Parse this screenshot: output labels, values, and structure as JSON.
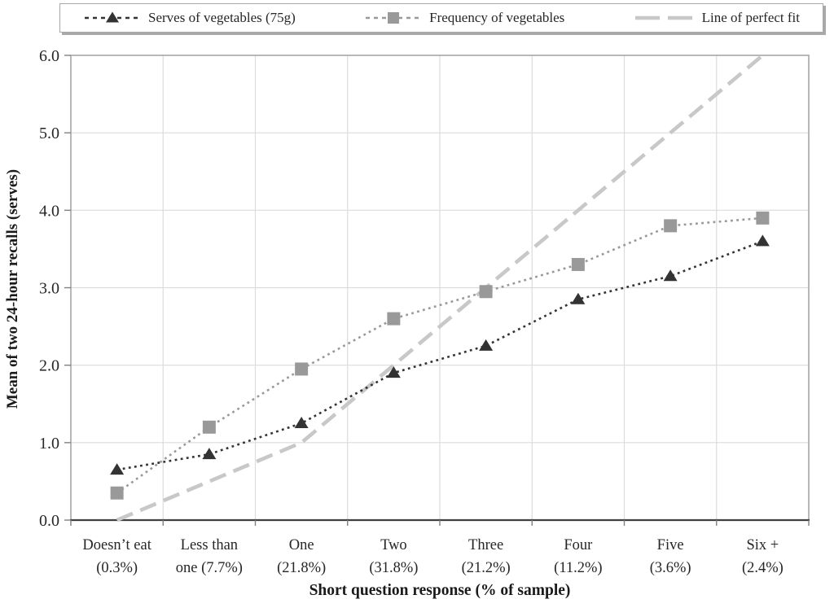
{
  "legend": {
    "items": [
      {
        "label": "Serves of vegetables (75g)"
      },
      {
        "label": "Frequency of vegetables"
      },
      {
        "label": "Line of perfect fit"
      }
    ]
  },
  "chart_data": {
    "type": "line",
    "title": "",
    "xlabel": "Short question response (% of sample)",
    "ylabel": "Mean of two 24-hour recalls (serves)",
    "ylim": [
      0,
      6
    ],
    "yticks": [
      "0.0",
      "1.0",
      "2.0",
      "3.0",
      "4.0",
      "5.0",
      "6.0"
    ],
    "grid": true,
    "legend_position": "top",
    "categories": [
      "Doesn’t eat (0.3%)",
      "Less than one (7.7%)",
      "One (21.8%)",
      "Two (31.8%)",
      "Three (21.2%)",
      "Four (11.2%)",
      "Five (3.6%)",
      "Six + (2.4%)"
    ],
    "category_lines": [
      [
        "Doesn’t eat",
        "(0.3%)"
      ],
      [
        "Less than",
        "one (7.7%)"
      ],
      [
        "One",
        "(21.8%)"
      ],
      [
        "Two",
        "(31.8%)"
      ],
      [
        "Three",
        "(21.2%)"
      ],
      [
        "Four",
        "(11.2%)"
      ],
      [
        "Five",
        "(3.6%)"
      ],
      [
        "Six +",
        "(2.4%)"
      ]
    ],
    "series": [
      {
        "name": "Serves of vegetables (75g)",
        "marker": "triangle",
        "line": "dotted",
        "color": "#333333",
        "values": [
          0.65,
          0.85,
          1.25,
          1.9,
          2.25,
          2.85,
          3.15,
          3.6
        ]
      },
      {
        "name": "Frequency of vegetables",
        "marker": "square",
        "line": "dotted",
        "color": "#999999",
        "values": [
          0.35,
          1.2,
          1.95,
          2.6,
          2.95,
          3.3,
          3.8,
          3.9
        ]
      },
      {
        "name": "Line of perfect fit",
        "marker": "none",
        "line": "long-dash",
        "color": "#c8c8c8",
        "values": [
          0,
          0.5,
          1,
          2,
          3,
          4,
          5,
          6
        ]
      }
    ]
  },
  "colors": {
    "gridline": "#dcdcdc",
    "plot_border": "#a6a6a6",
    "axis_line": "#404040",
    "tick": "#808080",
    "text": "#262626"
  }
}
